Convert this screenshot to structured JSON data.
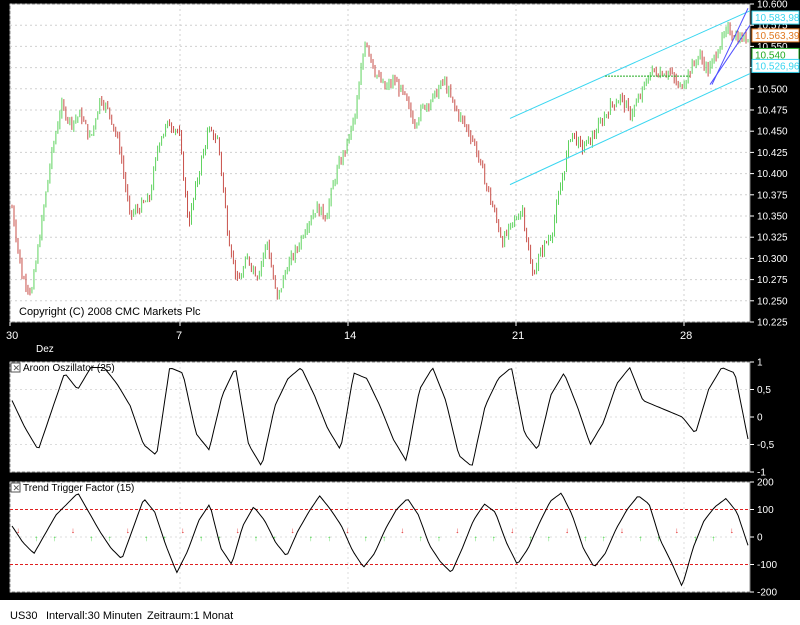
{
  "chart_data": [
    {
      "type": "candlestick",
      "copyright": "Copyright (C) 2008 CMC Markets Plc",
      "ylim": [
        10.225,
        10.6
      ],
      "y_ticks": [
        "10.600",
        "10.575",
        "10.550",
        "10.525",
        "10.500",
        "10.475",
        "10.450",
        "10.425",
        "10.400",
        "10.375",
        "10.350",
        "10.325",
        "10.300",
        "10.275",
        "10.250",
        "10.225"
      ],
      "x_ticks": [
        "30",
        "7",
        "14",
        "21",
        "28"
      ],
      "x_month_label": "Dez",
      "up_color": "#5fd35f",
      "down_color": "#c8504a",
      "channel_color": "#38d6f0",
      "price_series": [
        10.36,
        10.28,
        10.26,
        10.34,
        10.42,
        10.48,
        10.46,
        10.47,
        10.44,
        10.49,
        10.47,
        10.43,
        10.35,
        10.36,
        10.37,
        10.44,
        10.46,
        10.45,
        10.34,
        10.4,
        10.45,
        10.44,
        10.33,
        10.27,
        10.3,
        10.28,
        10.32,
        10.25,
        10.29,
        10.31,
        10.34,
        10.36,
        10.35,
        10.4,
        10.43,
        10.47,
        10.56,
        10.52,
        10.5,
        10.51,
        10.49,
        10.46,
        10.48,
        10.49,
        10.51,
        10.48,
        10.46,
        10.44,
        10.4,
        10.36,
        10.32,
        10.34,
        10.36,
        10.28,
        10.31,
        10.33,
        10.39,
        10.45,
        10.43,
        10.44,
        10.46,
        10.48,
        10.49,
        10.47,
        10.49,
        10.52,
        10.52,
        10.52,
        10.5,
        10.52,
        10.54,
        10.52,
        10.55,
        10.57,
        10.56,
        10.56
      ],
      "price_labels": [
        {
          "text": "10.583,98",
          "color": "#38d6f0",
          "value": 10.584
        },
        {
          "text": "10.563,39",
          "color": "#e07820",
          "value": 10.563
        },
        {
          "text": "10.540",
          "color": "#22aa22",
          "value": 10.54
        },
        {
          "text": "10.526,96",
          "color": "#38d6f0",
          "value": 10.527
        }
      ]
    },
    {
      "type": "line",
      "title": "Aroon Oszillator (25)",
      "ylim": [
        -1,
        1
      ],
      "y_ticks": [
        "1",
        "0,5",
        "0",
        "-0,5",
        "-1"
      ],
      "values": [
        0.3,
        -0.2,
        -0.6,
        0.1,
        0.8,
        0.5,
        0.9,
        0.9,
        0.6,
        0.2,
        -0.5,
        -0.7,
        0.9,
        0.8,
        -0.3,
        -0.6,
        0.4,
        0.9,
        -0.5,
        -0.9,
        0.2,
        0.7,
        0.9,
        0.4,
        -0.2,
        -0.6,
        0.8,
        0.7,
        0.2,
        -0.4,
        -0.8,
        0.5,
        0.9,
        0.3,
        -0.7,
        -0.9,
        0.2,
        0.7,
        0.9,
        -0.3,
        -0.6,
        0.4,
        0.8,
        0.2,
        -0.5,
        -0.1,
        0.6,
        0.9,
        0.3,
        0.2,
        0.1,
        0.0,
        -0.3,
        0.5,
        0.9,
        0.8,
        -0.4
      ]
    },
    {
      "type": "line",
      "title": "Trend Trigger Factor (15)",
      "ylim": [
        -200,
        200
      ],
      "y_ticks": [
        "200",
        "100",
        "0",
        "-100",
        "-200"
      ],
      "levels": [
        100,
        -100
      ],
      "level_color": "#e02020",
      "values": [
        40,
        -20,
        -60,
        10,
        80,
        120,
        160,
        90,
        20,
        -40,
        -80,
        30,
        140,
        90,
        -30,
        -130,
        -50,
        60,
        120,
        -40,
        -100,
        40,
        110,
        60,
        -20,
        -70,
        20,
        90,
        150,
        100,
        40,
        -50,
        -110,
        -60,
        30,
        100,
        140,
        80,
        -30,
        -90,
        -130,
        -40,
        60,
        120,
        90,
        -20,
        -100,
        -40,
        50,
        130,
        160,
        80,
        -40,
        -110,
        -60,
        30,
        100,
        150,
        120,
        -10,
        -90,
        -180,
        -40,
        60,
        110,
        140,
        90,
        -30
      ]
    }
  ],
  "status_bar": {
    "symbol": "US30",
    "interval": "Intervall:30 Minuten",
    "range": "Zeitraum:1 Monat"
  }
}
